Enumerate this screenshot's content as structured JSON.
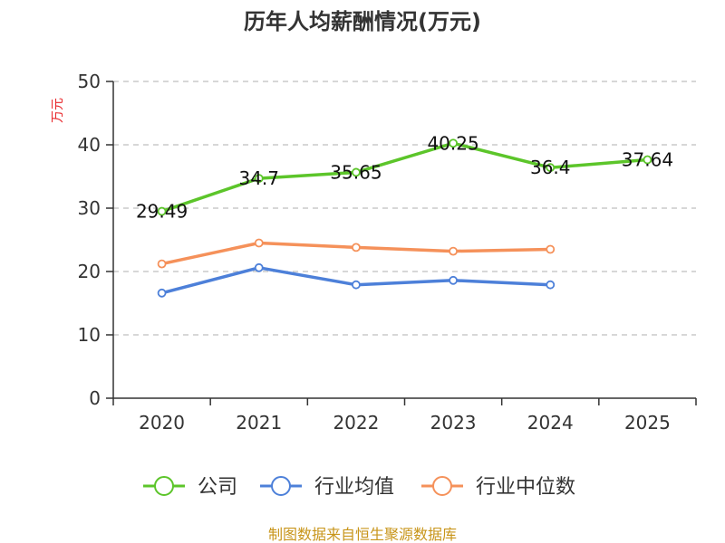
{
  "chart_data": {
    "type": "line",
    "title": "历年人均薪酬情况(万元)",
    "ylabel": "万元",
    "ylim": [
      0,
      50
    ],
    "yticks": [
      0,
      10,
      20,
      30,
      40,
      50
    ],
    "categories": [
      "2020",
      "2021",
      "2022",
      "2023",
      "2024",
      "2025"
    ],
    "grid": true,
    "legend_position": "bottom",
    "series": [
      {
        "name": "公司",
        "color": "#5cc52a",
        "values": [
          29.49,
          34.7,
          35.65,
          40.25,
          36.4,
          37.64
        ],
        "labels": [
          "29.49",
          "34.7",
          "35.65",
          "40.25",
          "36.4",
          "37.64"
        ]
      },
      {
        "name": "行业均值",
        "color": "#4d80d9",
        "values": [
          16.6,
          20.6,
          17.9,
          18.6,
          17.9,
          null
        ]
      },
      {
        "name": "行业中位数",
        "color": "#f5915a",
        "values": [
          21.2,
          24.5,
          23.8,
          23.2,
          23.5,
          null
        ]
      }
    ],
    "ylabel_color": "#e8262a"
  },
  "source": {
    "text": "制图数据来自恒生聚源数据库",
    "color": "#c8951a"
  }
}
